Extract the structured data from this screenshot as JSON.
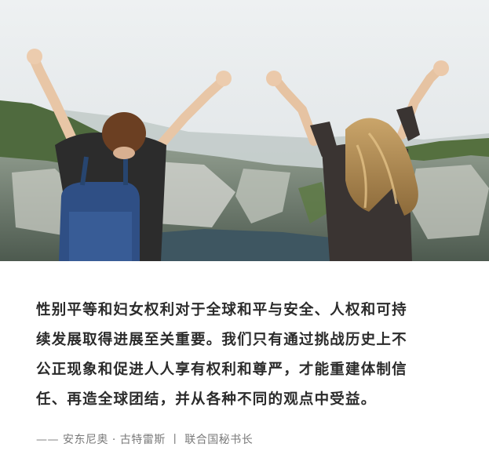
{
  "photo": {
    "subject": "two-women-arms-raised-mountain-view"
  },
  "quote": {
    "lines": [
      "性别平等和妇女权利对于全球和平与安全、人权和可持",
      "续发展取得进展至关重要。我们只有通过挑战历史上不",
      "公正现象和促进人人享有权利和尊严，才能重建体制信",
      "任、再造全球团结，并从各种不同的观点中受益。"
    ]
  },
  "attribution": {
    "text": "—— 安东尼奥 · 古特雷斯 丨 联合国秘书长"
  },
  "colors": {
    "quote_text": "#2b2b2b",
    "attribution_text": "#7a7a7a",
    "background": "#ffffff"
  }
}
